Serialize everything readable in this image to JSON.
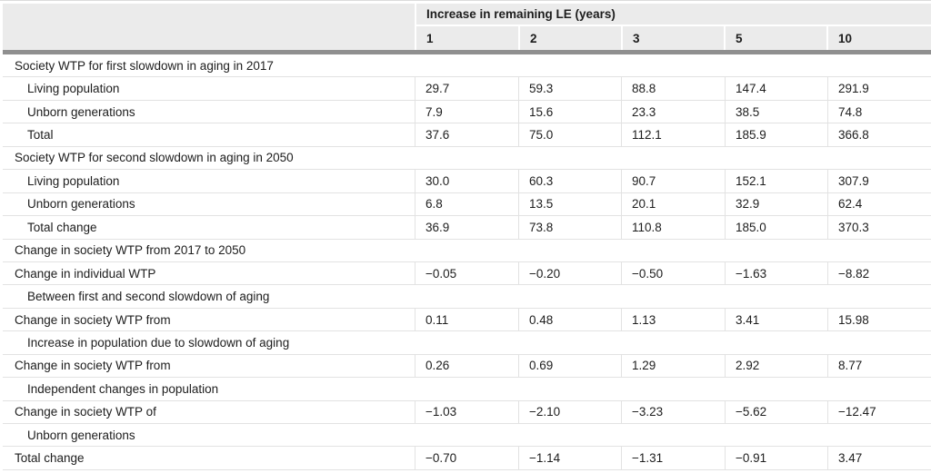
{
  "colors": {
    "header_bg": "#ebebeb",
    "divider": "#8f8f8f",
    "row_border": "#e2e2e2",
    "text": "#1d1d1d",
    "header_gap": "#ffffff"
  },
  "table": {
    "header": {
      "group_label": "Increase in remaining LE (years)",
      "columns": [
        "1",
        "2",
        "3",
        "5",
        "10"
      ]
    },
    "rows": [
      {
        "label": "Society WTP for first slowdown in aging in 2017",
        "indent": false,
        "values": null
      },
      {
        "label": "Living population",
        "indent": true,
        "values": [
          "29.7",
          "59.3",
          "88.8",
          "147.4",
          "291.9"
        ]
      },
      {
        "label": "Unborn generations",
        "indent": true,
        "values": [
          "7.9",
          "15.6",
          "23.3",
          "38.5",
          "74.8"
        ]
      },
      {
        "label": "Total",
        "indent": true,
        "values": [
          "37.6",
          "75.0",
          "112.1",
          "185.9",
          "366.8"
        ]
      },
      {
        "label": "Society WTP for second slowdown in aging in 2050",
        "indent": false,
        "values": null
      },
      {
        "label": "Living population",
        "indent": true,
        "values": [
          "30.0",
          "60.3",
          "90.7",
          "152.1",
          "307.9"
        ]
      },
      {
        "label": "Unborn generations",
        "indent": true,
        "values": [
          "6.8",
          "13.5",
          "20.1",
          "32.9",
          "62.4"
        ]
      },
      {
        "label": "Total change",
        "indent": true,
        "values": [
          "36.9",
          "73.8",
          "110.8",
          "185.0",
          "370.3"
        ]
      },
      {
        "label": "Change in society WTP from 2017 to 2050",
        "indent": false,
        "values": null
      },
      {
        "label": "Change in individual WTP",
        "indent": false,
        "values": [
          "−0.05",
          "−0.20",
          "−0.50",
          "−1.63",
          "−8.82"
        ]
      },
      {
        "label": "Between first and second slowdown of aging",
        "indent": true,
        "values": null
      },
      {
        "label": "Change in society WTP from",
        "indent": false,
        "values": [
          "0.11",
          "0.48",
          "1.13",
          "3.41",
          "15.98"
        ]
      },
      {
        "label": "Increase in population due to slowdown of aging",
        "indent": true,
        "values": null
      },
      {
        "label": "Change in society WTP from",
        "indent": false,
        "values": [
          "0.26",
          "0.69",
          "1.29",
          "2.92",
          "8.77"
        ]
      },
      {
        "label": "Independent changes in population",
        "indent": true,
        "values": null
      },
      {
        "label": "Change in society WTP of",
        "indent": false,
        "values": [
          "−1.03",
          "−2.10",
          "−3.23",
          "−5.62",
          "−12.47"
        ]
      },
      {
        "label": "Unborn generations",
        "indent": true,
        "values": null
      },
      {
        "label": "Total change",
        "indent": false,
        "values": [
          "−0.70",
          "−1.14",
          "−1.31",
          "−0.91",
          "3.47"
        ]
      }
    ]
  }
}
